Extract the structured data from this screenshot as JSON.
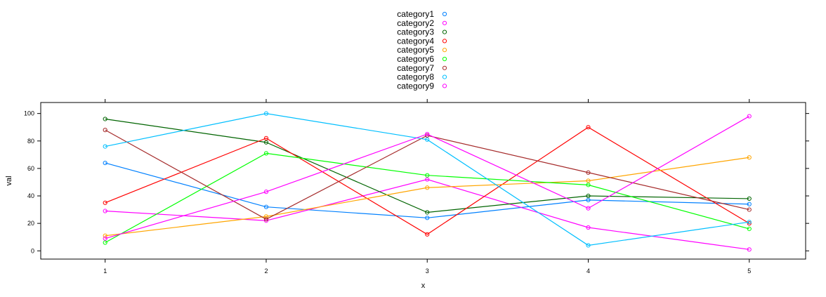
{
  "chart_data": {
    "type": "line",
    "xlabel": "x",
    "ylabel": "val",
    "x": [
      1,
      2,
      3,
      4,
      5
    ],
    "xticks": [
      "1",
      "2",
      "3",
      "4",
      "5"
    ],
    "xlim": [
      0.6,
      5.35
    ],
    "ylim": [
      -6,
      108
    ],
    "yticks": [
      "0",
      "20",
      "40",
      "60",
      "80",
      "100"
    ],
    "grid": false,
    "legend": "top-center",
    "series": [
      {
        "name": "category1",
        "color": "#0080ff",
        "values": [
          64,
          32,
          24,
          37,
          34
        ]
      },
      {
        "name": "category2",
        "color": "#ff00ff",
        "values": [
          29,
          22,
          52,
          17,
          1
        ]
      },
      {
        "name": "category3",
        "color": "#006400",
        "values": [
          96,
          79,
          28,
          40,
          38
        ]
      },
      {
        "name": "category4",
        "color": "#ff0000",
        "values": [
          35,
          82,
          12,
          90,
          20
        ]
      },
      {
        "name": "category5",
        "color": "#ffa500",
        "values": [
          11,
          25,
          46,
          51,
          68
        ]
      },
      {
        "name": "category6",
        "color": "#00ff00",
        "values": [
          6,
          71,
          55,
          48,
          16
        ]
      },
      {
        "name": "category7",
        "color": "#a52a2a",
        "values": [
          88,
          23,
          84,
          57,
          30
        ]
      },
      {
        "name": "category8",
        "color": "#00bfff",
        "values": [
          76,
          100,
          81,
          4,
          21
        ]
      },
      {
        "name": "category9",
        "color": "#ff00ff",
        "values": [
          9,
          43,
          85,
          31,
          98
        ]
      }
    ]
  }
}
